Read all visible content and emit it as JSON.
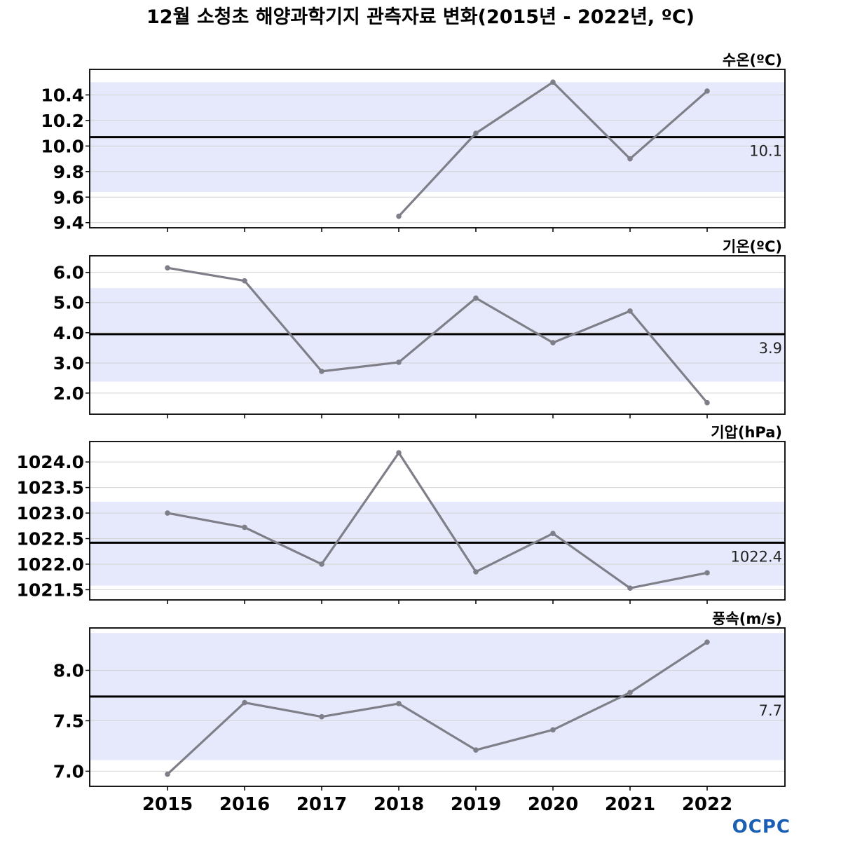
{
  "title": "12월 소청초 해양과학기지 관측자료 변화(2015년 - 2022년, ºC)",
  "logo_text": "OCPC",
  "colors": {
    "band": "#e6e9fb",
    "line": "#7f7f8a",
    "mean_line": "#000000",
    "grid": "#d2d2d2",
    "frame": "#000000",
    "logo": "#1a5fb4"
  },
  "chart_data": [
    {
      "type": "line",
      "ylabel": "수온(ºC)",
      "categories": [
        "2015",
        "2016",
        "2017",
        "2018",
        "2019",
        "2020",
        "2021",
        "2022"
      ],
      "values": [
        null,
        null,
        null,
        9.45,
        10.1,
        10.5,
        9.9,
        10.43
      ],
      "mean": 10.07,
      "mean_label": "10.1",
      "band": [
        9.64,
        10.5
      ],
      "ylim": [
        9.36,
        10.6
      ],
      "yticks": [
        9.4,
        9.6,
        9.8,
        10.0,
        10.2,
        10.4
      ],
      "ytick_labels": [
        "9.4",
        "9.6",
        "9.8",
        "10.0",
        "10.2",
        "10.4"
      ],
      "grid": true
    },
    {
      "type": "line",
      "ylabel": "기온(ºC)",
      "categories": [
        "2015",
        "2016",
        "2017",
        "2018",
        "2019",
        "2020",
        "2021",
        "2022"
      ],
      "values": [
        6.15,
        5.72,
        2.72,
        3.02,
        5.15,
        3.67,
        4.72,
        1.68
      ],
      "mean": 3.95,
      "mean_label": "3.9",
      "band": [
        2.38,
        5.48
      ],
      "ylim": [
        1.3,
        6.55
      ],
      "yticks": [
        2.0,
        3.0,
        4.0,
        5.0,
        6.0
      ],
      "ytick_labels": [
        "2.0",
        "3.0",
        "4.0",
        "5.0",
        "6.0"
      ],
      "grid": true
    },
    {
      "type": "line",
      "ylabel": "기압(hPa)",
      "categories": [
        "2015",
        "2016",
        "2017",
        "2018",
        "2019",
        "2020",
        "2021",
        "2022"
      ],
      "values": [
        1023.0,
        1022.72,
        1022.0,
        1024.18,
        1021.85,
        1022.6,
        1021.53,
        1021.83
      ],
      "mean": 1022.42,
      "mean_label": "1022.4",
      "band": [
        1021.58,
        1023.22
      ],
      "ylim": [
        1021.3,
        1024.4
      ],
      "yticks": [
        1021.5,
        1022.0,
        1022.5,
        1023.0,
        1023.5,
        1024.0
      ],
      "ytick_labels": [
        "1021.5",
        "1022.0",
        "1022.5",
        "1023.0",
        "1023.5",
        "1024.0"
      ],
      "grid": true
    },
    {
      "type": "line",
      "ylabel": "풍속(m/s)",
      "categories": [
        "2015",
        "2016",
        "2017",
        "2018",
        "2019",
        "2020",
        "2021",
        "2022"
      ],
      "values": [
        6.97,
        7.68,
        7.54,
        7.67,
        7.21,
        7.41,
        7.78,
        8.28
      ],
      "mean": 7.74,
      "mean_label": "7.7",
      "band": [
        7.11,
        8.37
      ],
      "ylim": [
        6.85,
        8.42
      ],
      "yticks": [
        7.0,
        7.5,
        8.0
      ],
      "ytick_labels": [
        "7.0",
        "7.5",
        "8.0"
      ],
      "grid": true
    }
  ]
}
